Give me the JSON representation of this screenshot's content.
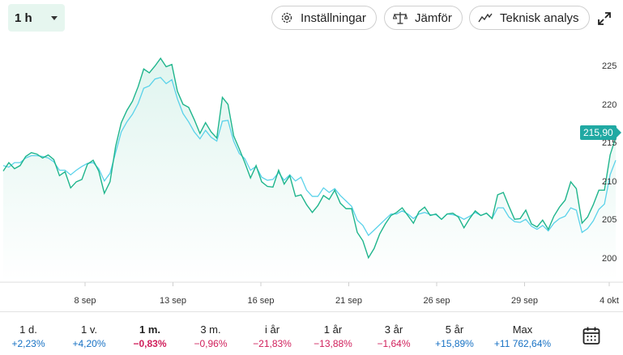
{
  "interval": {
    "label": "1 h"
  },
  "toolbar": {
    "settings_label": "Inställningar",
    "compare_label": "Jämför",
    "technical_label": "Teknisk analys"
  },
  "current_price_label": "215,90",
  "colors": {
    "primary": "#1fb58c",
    "comparison": "#5ad2ea",
    "price_tag": "#20a9a3",
    "positive": "#1872c4",
    "negative": "#d01f5b"
  },
  "periods": [
    {
      "label": "1 d.",
      "value": "+2,23%",
      "sign": "pos"
    },
    {
      "label": "1 v.",
      "value": "+4,20%",
      "sign": "pos"
    },
    {
      "label": "1 m.",
      "value": "−0,83%",
      "sign": "neg",
      "active": true
    },
    {
      "label": "3 m.",
      "value": "−0,96%",
      "sign": "neg"
    },
    {
      "label": "i år",
      "value": "−21,83%",
      "sign": "neg"
    },
    {
      "label": "1 år",
      "value": "−13,88%",
      "sign": "neg"
    },
    {
      "label": "3 år",
      "value": "−1,64%",
      "sign": "neg"
    },
    {
      "label": "5 år",
      "value": "+15,89%",
      "sign": "pos"
    },
    {
      "label": "Max",
      "value": "+11 762,64%",
      "sign": "pos"
    }
  ],
  "chart_data": {
    "type": "area",
    "x_ticks": [
      "8 sep",
      "13 sep",
      "16 sep",
      "21 sep",
      "26 sep",
      "29 sep",
      "4 okt"
    ],
    "y_ticks": [
      "200",
      "205",
      "210",
      "215",
      "220",
      "225"
    ],
    "ylim": [
      197,
      228
    ],
    "grid": false,
    "series": [
      {
        "values": [
          211.5,
          212.6,
          211.8,
          212.2,
          213.4,
          213.9,
          213.7,
          213.2,
          213.6,
          213.0,
          210.9,
          211.4,
          209.3,
          210.1,
          210.4,
          212.4,
          212.9,
          211.5,
          208.6,
          210.1,
          214.7,
          217.8,
          219.4,
          220.6,
          222.5,
          224.8,
          224.3,
          225.2,
          226.2,
          225.1,
          225.4,
          221.9,
          220.2,
          219.8,
          218.2,
          216.4,
          217.8,
          216.6,
          215.8,
          221.1,
          220.2,
          216.1,
          214.4,
          212.6,
          210.6,
          212.2,
          210.1,
          209.5,
          209.4,
          211.6,
          209.8,
          210.9,
          208.2,
          208.4,
          207.1,
          206.1,
          207.0,
          208.3,
          207.8,
          209.0,
          207.3,
          206.6,
          206.6,
          203.5,
          202.4,
          200.2,
          201.4,
          203.3,
          204.6,
          205.7,
          206.1,
          206.7,
          205.7,
          204.7,
          206.2,
          206.8,
          205.7,
          205.9,
          205.2,
          205.9,
          206.0,
          205.5,
          204.1,
          205.3,
          206.3,
          205.7,
          206.0,
          205.3,
          208.4,
          208.7,
          206.9,
          205.2,
          205.3,
          206.4,
          204.6,
          204.2,
          205.1,
          203.9,
          205.6,
          206.8,
          207.7,
          210.1,
          209.2,
          204.7,
          205.5,
          207.1,
          209.0,
          209.0,
          213.6,
          215.9
        ]
      },
      {
        "values": [
          212.2,
          212.0,
          212.6,
          212.6,
          213.2,
          213.5,
          213.5,
          213.4,
          213.2,
          212.7,
          211.6,
          211.6,
          211.0,
          211.6,
          212.1,
          212.5,
          212.6,
          211.8,
          210.2,
          211.2,
          213.9,
          216.6,
          217.9,
          218.9,
          220.3,
          222.3,
          222.6,
          223.5,
          223.7,
          222.9,
          223.4,
          220.9,
          219.0,
          217.9,
          216.6,
          215.7,
          216.8,
          215.9,
          215.4,
          218.0,
          218.1,
          215.4,
          213.8,
          213.1,
          211.6,
          212.1,
          210.7,
          210.3,
          210.4,
          211.3,
          210.3,
          211.0,
          210.2,
          210.7,
          209.0,
          208.2,
          208.2,
          209.3,
          208.7,
          209.2,
          208.3,
          207.6,
          206.9,
          205.1,
          204.4,
          203.1,
          203.8,
          204.5,
          205.2,
          205.9,
          205.9,
          206.3,
          205.9,
          205.3,
          205.9,
          206.1,
          205.8,
          205.8,
          205.2,
          205.9,
          205.8,
          205.6,
          205.2,
          205.6,
          206.1,
          205.7,
          206.0,
          205.3,
          206.7,
          206.7,
          205.5,
          204.9,
          204.8,
          205.2,
          204.3,
          203.9,
          204.4,
          203.7,
          204.7,
          205.3,
          205.6,
          206.7,
          206.4,
          203.5,
          204.0,
          205.0,
          206.5,
          207.2,
          211.0,
          212.9
        ]
      }
    ]
  }
}
